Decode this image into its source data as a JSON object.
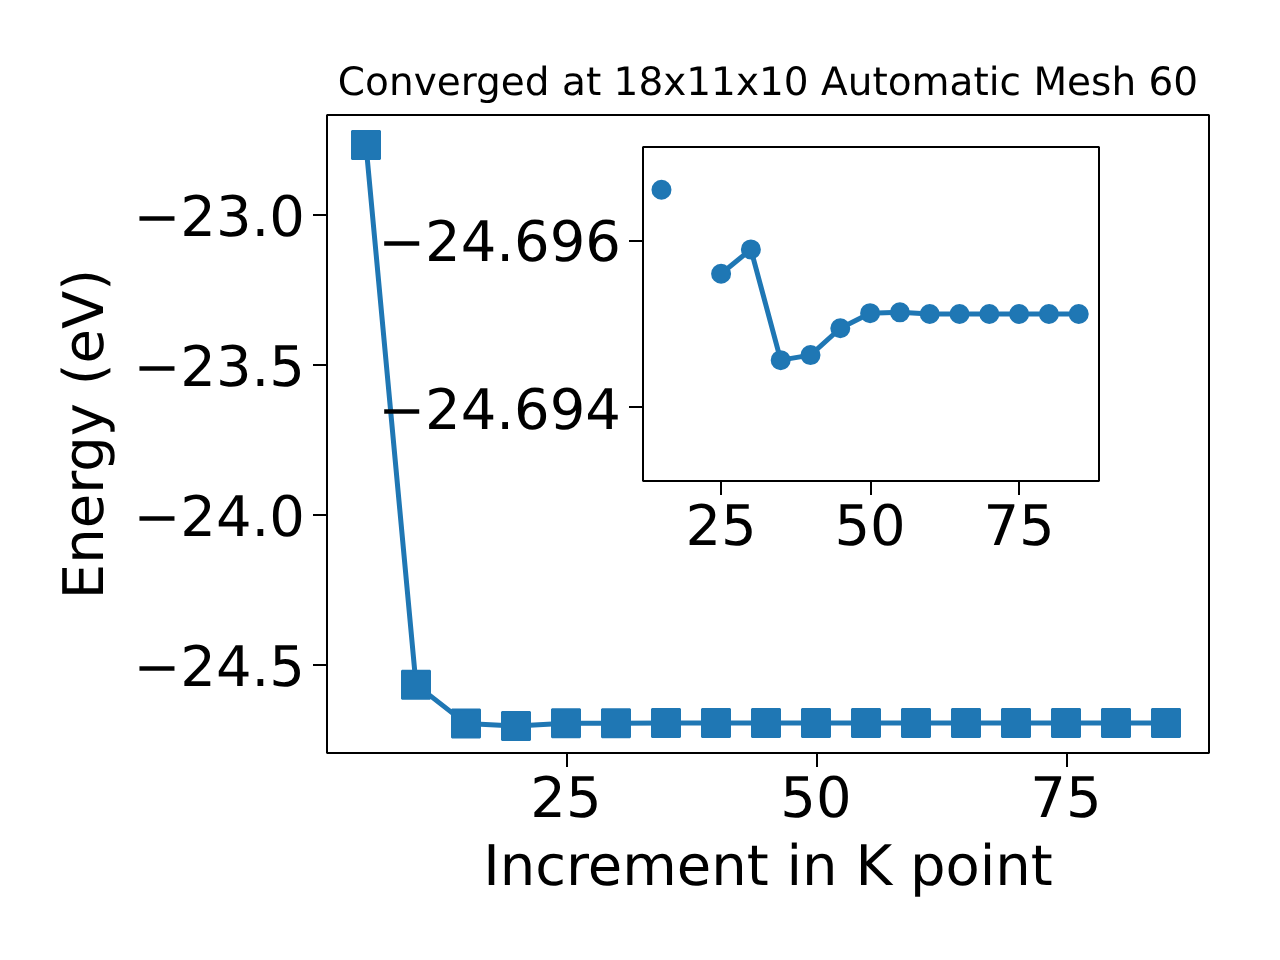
{
  "chart_data": [
    {
      "type": "line",
      "title": "Converged at 18x11x10 Automatic Mesh 60",
      "xlabel": "Increment in K point",
      "ylabel": "Energy (eV)",
      "marker": "square",
      "line_style": "solid",
      "grid": false,
      "x": [
        5,
        10,
        15,
        20,
        25,
        30,
        35,
        40,
        45,
        50,
        55,
        60,
        65,
        70,
        75,
        80,
        85
      ],
      "series": [
        {
          "color": "#1f77b4",
          "values": [
            -22.767,
            -24.567,
            -24.697,
            -24.705,
            -24.696,
            -24.696,
            -24.695,
            -24.695,
            -24.695,
            -24.695,
            -24.695,
            -24.695,
            -24.695,
            -24.695,
            -24.695,
            -24.695,
            -24.695
          ]
        }
      ],
      "xlim": [
        1.1,
        89.3
      ],
      "ylim": [
        -24.795,
        -22.667
      ],
      "xticks": [
        25,
        50,
        75
      ],
      "yticks": [
        {
          "value": -23.0,
          "label": "−23.0"
        },
        {
          "value": -23.5,
          "label": "−23.5"
        },
        {
          "value": -24.0,
          "label": "−24.0"
        },
        {
          "value": -24.5,
          "label": "−24.5"
        }
      ]
    },
    {
      "type": "line",
      "marker": "circle",
      "line_style": "solid",
      "grid": false,
      "x": [
        15,
        20,
        25,
        30,
        35,
        40,
        45,
        50,
        55,
        60,
        65,
        70,
        75,
        80,
        85
      ],
      "series": [
        {
          "color": "#1f77b4",
          "values": [
            -24.6966,
            null,
            -24.6956,
            -24.69589,
            -24.69457,
            -24.69463,
            -24.69495,
            -24.69513,
            -24.69514,
            -24.69512,
            -24.69512,
            -24.69512,
            -24.69512,
            -24.69512,
            -24.69512
          ]
        }
      ],
      "xlim": [
        11.9,
        88.4
      ],
      "ylim": [
        -24.69313,
        -24.69711
      ],
      "xticks": [
        25,
        50,
        75
      ],
      "yticks": [
        {
          "value": -24.696,
          "label": "−24.696"
        },
        {
          "value": -24.694,
          "label": "−24.694"
        }
      ]
    }
  ]
}
